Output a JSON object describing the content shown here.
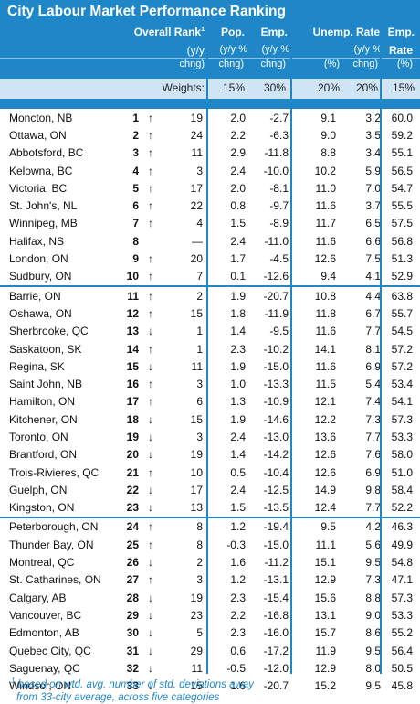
{
  "title": "City Labour Market Performance Ranking",
  "header": {
    "overall_rank": "Overall Rank",
    "overall_rank_sup": "1",
    "pop": "Pop.",
    "emp": "Emp.",
    "unemp_rate": "Unemp. Rate",
    "emp_rate_l1": "Emp.",
    "emp_rate_l2": "Rate",
    "rank_chg_l1": "(y/y",
    "rank_chg_l2": "chng)",
    "pop_l1": "(y/y %",
    "pop_l2": "chng)",
    "emp_l1": "(y/y %",
    "emp_l2": "chng)",
    "unemp_pct": "(%)",
    "unemp_chg_l1": "(y/y %",
    "unemp_chg_l2": "chng)",
    "emprate_pct": "(%)",
    "weights_label": "Weights:",
    "weights": [
      "15%",
      "30%",
      "20%",
      "20%",
      "15%"
    ]
  },
  "rows": [
    {
      "city": "Moncton, NB",
      "rank": "1",
      "dir": "up",
      "chg": "19",
      "pop": "2.0",
      "emp": "-2.7",
      "ur": "9.1",
      "urc": "3.2",
      "er": "60.0"
    },
    {
      "city": "Ottawa, ON",
      "rank": "2",
      "dir": "up",
      "chg": "24",
      "pop": "2.2",
      "emp": "-6.3",
      "ur": "9.0",
      "urc": "3.5",
      "er": "59.2"
    },
    {
      "city": "Abbotsford, BC",
      "rank": "3",
      "dir": "up",
      "chg": "11",
      "pop": "2.9",
      "emp": "-11.8",
      "ur": "8.8",
      "urc": "3.4",
      "er": "55.1"
    },
    {
      "city": "Kelowna, BC",
      "rank": "4",
      "dir": "up",
      "chg": "3",
      "pop": "2.4",
      "emp": "-10.0",
      "ur": "10.2",
      "urc": "5.9",
      "er": "56.5"
    },
    {
      "city": "Victoria, BC",
      "rank": "5",
      "dir": "up",
      "chg": "17",
      "pop": "2.0",
      "emp": "-8.1",
      "ur": "11.0",
      "urc": "7.0",
      "er": "54.7"
    },
    {
      "city": "St. John's, NL",
      "rank": "6",
      "dir": "up",
      "chg": "22",
      "pop": "0.8",
      "emp": "-9.7",
      "ur": "11.6",
      "urc": "3.7",
      "er": "55.5"
    },
    {
      "city": "Winnipeg, MB",
      "rank": "7",
      "dir": "up",
      "chg": "4",
      "pop": "1.5",
      "emp": "-8.9",
      "ur": "11.7",
      "urc": "6.5",
      "er": "57.5"
    },
    {
      "city": "Halifax, NS",
      "rank": "8",
      "dir": "flat",
      "chg": "—",
      "pop": "2.4",
      "emp": "-11.0",
      "ur": "11.6",
      "urc": "6.6",
      "er": "56.8"
    },
    {
      "city": "London, ON",
      "rank": "9",
      "dir": "up",
      "chg": "20",
      "pop": "1.7",
      "emp": "-4.5",
      "ur": "12.6",
      "urc": "7.5",
      "er": "51.3"
    },
    {
      "city": "Sudbury, ON",
      "rank": "10",
      "dir": "up",
      "chg": "7",
      "pop": "0.1",
      "emp": "-12.6",
      "ur": "9.4",
      "urc": "4.1",
      "er": "52.9"
    },
    {
      "city": "Barrie, ON",
      "rank": "11",
      "dir": "up",
      "chg": "2",
      "pop": "1.9",
      "emp": "-20.7",
      "ur": "10.8",
      "urc": "4.4",
      "er": "63.8"
    },
    {
      "city": "Oshawa, ON",
      "rank": "12",
      "dir": "up",
      "chg": "15",
      "pop": "1.8",
      "emp": "-11.9",
      "ur": "11.8",
      "urc": "6.7",
      "er": "55.7"
    },
    {
      "city": "Sherbrooke, QC",
      "rank": "13",
      "dir": "dn",
      "chg": "1",
      "pop": "1.4",
      "emp": "-9.5",
      "ur": "11.6",
      "urc": "7.7",
      "er": "54.5"
    },
    {
      "city": "Saskatoon, SK",
      "rank": "14",
      "dir": "up",
      "chg": "1",
      "pop": "2.3",
      "emp": "-10.2",
      "ur": "14.1",
      "urc": "8.1",
      "er": "57.2"
    },
    {
      "city": "Regina, SK",
      "rank": "15",
      "dir": "dn",
      "chg": "11",
      "pop": "1.9",
      "emp": "-15.0",
      "ur": "11.6",
      "urc": "6.9",
      "er": "57.2"
    },
    {
      "city": "Saint John, NB",
      "rank": "16",
      "dir": "up",
      "chg": "3",
      "pop": "1.0",
      "emp": "-13.3",
      "ur": "11.5",
      "urc": "5.4",
      "er": "53.4"
    },
    {
      "city": "Hamilton, ON",
      "rank": "17",
      "dir": "up",
      "chg": "6",
      "pop": "1.3",
      "emp": "-10.9",
      "ur": "12.1",
      "urc": "7.4",
      "er": "54.1"
    },
    {
      "city": "Kitchener, ON",
      "rank": "18",
      "dir": "dn",
      "chg": "15",
      "pop": "1.9",
      "emp": "-14.6",
      "ur": "12.2",
      "urc": "7.3",
      "er": "57.3"
    },
    {
      "city": "Toronto, ON",
      "rank": "19",
      "dir": "dn",
      "chg": "3",
      "pop": "2.4",
      "emp": "-13.0",
      "ur": "13.6",
      "urc": "7.7",
      "er": "53.3"
    },
    {
      "city": "Brantford, ON",
      "rank": "20",
      "dir": "dn",
      "chg": "19",
      "pop": "1.4",
      "emp": "-14.2",
      "ur": "12.6",
      "urc": "7.6",
      "er": "58.0"
    },
    {
      "city": "Trois-Rivieres, QC",
      "rank": "21",
      "dir": "up",
      "chg": "10",
      "pop": "0.5",
      "emp": "-10.4",
      "ur": "12.6",
      "urc": "6.9",
      "er": "51.0"
    },
    {
      "city": "Guelph, ON",
      "rank": "22",
      "dir": "dn",
      "chg": "17",
      "pop": "2.4",
      "emp": "-12.5",
      "ur": "14.9",
      "urc": "9.8",
      "er": "58.4"
    },
    {
      "city": "Kingston, ON",
      "rank": "23",
      "dir": "dn",
      "chg": "13",
      "pop": "1.5",
      "emp": "-13.5",
      "ur": "12.4",
      "urc": "7.7",
      "er": "52.2"
    },
    {
      "city": "Peterborough, ON",
      "rank": "24",
      "dir": "up",
      "chg": "8",
      "pop": "1.2",
      "emp": "-19.4",
      "ur": "9.5",
      "urc": "4.2",
      "er": "46.3"
    },
    {
      "city": "Thunder Bay, ON",
      "rank": "25",
      "dir": "up",
      "chg": "8",
      "pop": "-0.3",
      "emp": "-15.0",
      "ur": "11.1",
      "urc": "5.6",
      "er": "49.9"
    },
    {
      "city": "Montreal, QC",
      "rank": "26",
      "dir": "dn",
      "chg": "2",
      "pop": "1.6",
      "emp": "-11.2",
      "ur": "15.1",
      "urc": "9.5",
      "er": "54.8"
    },
    {
      "city": "St. Catharines, ON",
      "rank": "27",
      "dir": "up",
      "chg": "3",
      "pop": "1.2",
      "emp": "-13.1",
      "ur": "12.9",
      "urc": "7.3",
      "er": "47.1"
    },
    {
      "city": "Calgary, AB",
      "rank": "28",
      "dir": "dn",
      "chg": "19",
      "pop": "2.3",
      "emp": "-15.4",
      "ur": "15.6",
      "urc": "8.8",
      "er": "57.3"
    },
    {
      "city": "Vancouver, BC",
      "rank": "29",
      "dir": "dn",
      "chg": "23",
      "pop": "2.2",
      "emp": "-16.8",
      "ur": "13.1",
      "urc": "9.0",
      "er": "53.3"
    },
    {
      "city": "Edmonton, AB",
      "rank": "30",
      "dir": "dn",
      "chg": "5",
      "pop": "2.3",
      "emp": "-16.0",
      "ur": "15.7",
      "urc": "8.6",
      "er": "55.2"
    },
    {
      "city": "Quebec City, QC",
      "rank": "31",
      "dir": "dn",
      "chg": "29",
      "pop": "0.6",
      "emp": "-17.2",
      "ur": "11.9",
      "urc": "9.5",
      "er": "56.4"
    },
    {
      "city": "Saguenay, QC",
      "rank": "32",
      "dir": "dn",
      "chg": "11",
      "pop": "-0.5",
      "emp": "-12.0",
      "ur": "12.9",
      "urc": "8.0",
      "er": "50.5"
    },
    {
      "city": "Windsor, ON",
      "rank": "33",
      "dir": "dn",
      "chg": "15",
      "pop": "1.6",
      "emp": "-20.7",
      "ur": "15.2",
      "urc": "9.5",
      "er": "45.8"
    }
  ],
  "footnote_sup": "1",
  "footnote_l1": "based on wtd. avg. number of std. deviations away",
  "footnote_l2": "from 33-city average, across five categories"
}
